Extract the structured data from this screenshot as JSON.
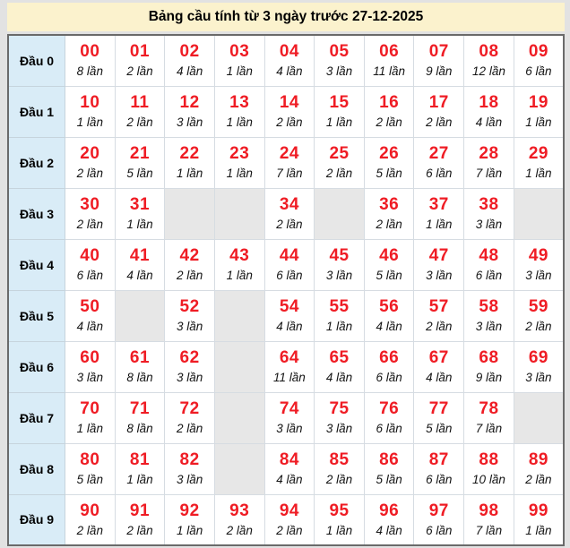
{
  "colors": {
    "title_bg": "#fbf2cd",
    "row_header_bg": "#d9ecf7",
    "empty_cell_bg": "#e7e7e7",
    "number_red": "#ef1c24",
    "outer_border": "#6a6a6a",
    "inner_border": "#d6dce2",
    "page_bg": "#e2e2e2"
  },
  "chart_data": {
    "type": "table",
    "title": "Bảng cầu tính từ 3 ngày trước 27-12-2025",
    "unit": "lần",
    "row_labels": [
      "Đầu 0",
      "Đầu 1",
      "Đầu 2",
      "Đầu 3",
      "Đầu 4",
      "Đầu 5",
      "Đầu 6",
      "Đầu 7",
      "Đầu 8",
      "Đầu 9"
    ],
    "rows": [
      {
        "label": "Đầu 0",
        "cells": [
          {
            "num": "00",
            "count": 8
          },
          {
            "num": "01",
            "count": 2
          },
          {
            "num": "02",
            "count": 4
          },
          {
            "num": "03",
            "count": 1
          },
          {
            "num": "04",
            "count": 4
          },
          {
            "num": "05",
            "count": 3
          },
          {
            "num": "06",
            "count": 11
          },
          {
            "num": "07",
            "count": 9
          },
          {
            "num": "08",
            "count": 12
          },
          {
            "num": "09",
            "count": 6
          }
        ]
      },
      {
        "label": "Đầu 1",
        "cells": [
          {
            "num": "10",
            "count": 1
          },
          {
            "num": "11",
            "count": 2
          },
          {
            "num": "12",
            "count": 3
          },
          {
            "num": "13",
            "count": 1
          },
          {
            "num": "14",
            "count": 2
          },
          {
            "num": "15",
            "count": 1
          },
          {
            "num": "16",
            "count": 2
          },
          {
            "num": "17",
            "count": 2
          },
          {
            "num": "18",
            "count": 4
          },
          {
            "num": "19",
            "count": 1
          }
        ]
      },
      {
        "label": "Đầu 2",
        "cells": [
          {
            "num": "20",
            "count": 2
          },
          {
            "num": "21",
            "count": 5
          },
          {
            "num": "22",
            "count": 1
          },
          {
            "num": "23",
            "count": 1
          },
          {
            "num": "24",
            "count": 7
          },
          {
            "num": "25",
            "count": 2
          },
          {
            "num": "26",
            "count": 5
          },
          {
            "num": "27",
            "count": 6
          },
          {
            "num": "28",
            "count": 7
          },
          {
            "num": "29",
            "count": 1
          }
        ]
      },
      {
        "label": "Đầu 3",
        "cells": [
          {
            "num": "30",
            "count": 2
          },
          {
            "num": "31",
            "count": 1
          },
          null,
          null,
          {
            "num": "34",
            "count": 2
          },
          null,
          {
            "num": "36",
            "count": 2
          },
          {
            "num": "37",
            "count": 1
          },
          {
            "num": "38",
            "count": 3
          },
          null
        ]
      },
      {
        "label": "Đầu 4",
        "cells": [
          {
            "num": "40",
            "count": 6
          },
          {
            "num": "41",
            "count": 4
          },
          {
            "num": "42",
            "count": 2
          },
          {
            "num": "43",
            "count": 1
          },
          {
            "num": "44",
            "count": 6
          },
          {
            "num": "45",
            "count": 3
          },
          {
            "num": "46",
            "count": 5
          },
          {
            "num": "47",
            "count": 3
          },
          {
            "num": "48",
            "count": 6
          },
          {
            "num": "49",
            "count": 3
          }
        ]
      },
      {
        "label": "Đầu 5",
        "cells": [
          {
            "num": "50",
            "count": 4
          },
          null,
          {
            "num": "52",
            "count": 3
          },
          null,
          {
            "num": "54",
            "count": 4
          },
          {
            "num": "55",
            "count": 1
          },
          {
            "num": "56",
            "count": 4
          },
          {
            "num": "57",
            "count": 2
          },
          {
            "num": "58",
            "count": 3
          },
          {
            "num": "59",
            "count": 2
          }
        ]
      },
      {
        "label": "Đầu 6",
        "cells": [
          {
            "num": "60",
            "count": 3
          },
          {
            "num": "61",
            "count": 8
          },
          {
            "num": "62",
            "count": 3
          },
          null,
          {
            "num": "64",
            "count": 11
          },
          {
            "num": "65",
            "count": 4
          },
          {
            "num": "66",
            "count": 6
          },
          {
            "num": "67",
            "count": 4
          },
          {
            "num": "68",
            "count": 9
          },
          {
            "num": "69",
            "count": 3
          }
        ]
      },
      {
        "label": "Đầu 7",
        "cells": [
          {
            "num": "70",
            "count": 1
          },
          {
            "num": "71",
            "count": 8
          },
          {
            "num": "72",
            "count": 2
          },
          null,
          {
            "num": "74",
            "count": 3
          },
          {
            "num": "75",
            "count": 3
          },
          {
            "num": "76",
            "count": 6
          },
          {
            "num": "77",
            "count": 5
          },
          {
            "num": "78",
            "count": 7
          },
          null
        ]
      },
      {
        "label": "Đầu 8",
        "cells": [
          {
            "num": "80",
            "count": 5
          },
          {
            "num": "81",
            "count": 1
          },
          {
            "num": "82",
            "count": 3
          },
          null,
          {
            "num": "84",
            "count": 4
          },
          {
            "num": "85",
            "count": 2
          },
          {
            "num": "86",
            "count": 5
          },
          {
            "num": "87",
            "count": 6
          },
          {
            "num": "88",
            "count": 10
          },
          {
            "num": "89",
            "count": 2
          }
        ]
      },
      {
        "label": "Đầu 9",
        "cells": [
          {
            "num": "90",
            "count": 2
          },
          {
            "num": "91",
            "count": 2
          },
          {
            "num": "92",
            "count": 1
          },
          {
            "num": "93",
            "count": 2
          },
          {
            "num": "94",
            "count": 2
          },
          {
            "num": "95",
            "count": 1
          },
          {
            "num": "96",
            "count": 4
          },
          {
            "num": "97",
            "count": 6
          },
          {
            "num": "98",
            "count": 7
          },
          {
            "num": "99",
            "count": 1
          }
        ]
      }
    ]
  }
}
